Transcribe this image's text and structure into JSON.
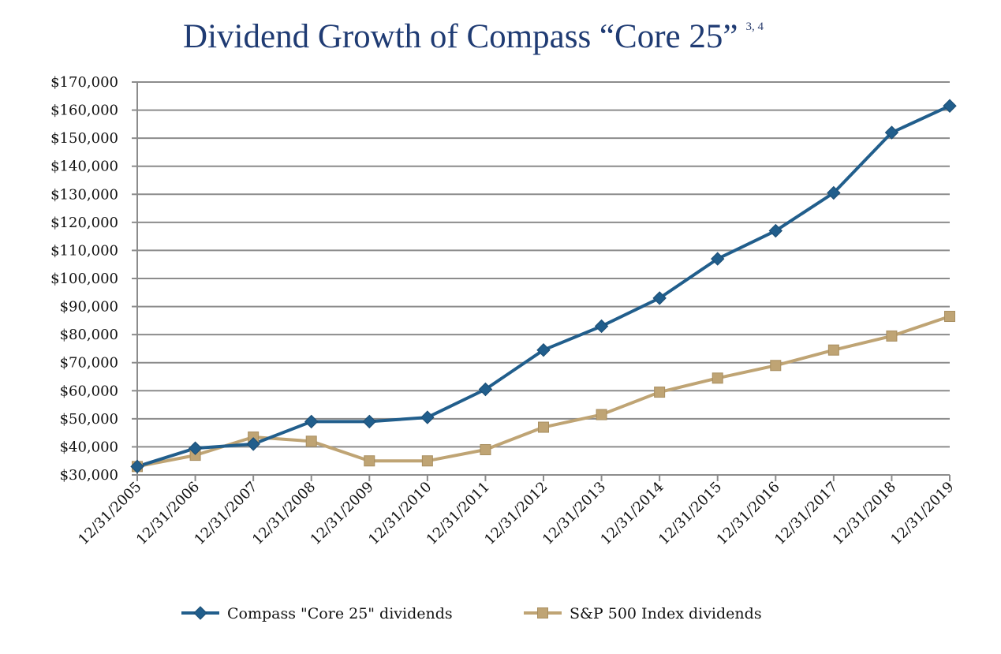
{
  "chart_data": {
    "type": "line",
    "title": "Dividend Growth of Compass “Core 25”",
    "title_superscript": "3, 4",
    "xlabel": "",
    "ylabel": "",
    "categories": [
      "12/31/2005",
      "12/31/2006",
      "12/31/2007",
      "12/31/2008",
      "12/31/2009",
      "12/31/2010",
      "12/31/2011",
      "12/31/2012",
      "12/31/2013",
      "12/31/2014",
      "12/31/2015",
      "12/31/2016",
      "12/31/2017",
      "12/31/2018",
      "12/31/2019"
    ],
    "ylim": [
      30000,
      170000
    ],
    "y_ticks": [
      30000,
      40000,
      50000,
      60000,
      70000,
      80000,
      90000,
      100000,
      110000,
      120000,
      130000,
      140000,
      150000,
      160000,
      170000
    ],
    "y_tick_labels": [
      "$30,000",
      "$40,000",
      "$50,000",
      "$60,000",
      "$70,000",
      "$80,000",
      "$90,000",
      "$100,000",
      "$110,000",
      "$120,000",
      "$130,000",
      "$140,000",
      "$150,000",
      "$160,000",
      "$170,000"
    ],
    "grid": true,
    "legend_position": "bottom",
    "series": [
      {
        "name": "Compass \"Core 25\" dividends",
        "color": "#215e8c",
        "marker": "diamond",
        "values": [
          33000,
          39500,
          41000,
          49000,
          49000,
          50500,
          60500,
          74500,
          83000,
          93000,
          107000,
          117000,
          130500,
          152000,
          161500
        ]
      },
      {
        "name": "S&P 500 Index dividends",
        "color": "#bfa474",
        "marker": "square",
        "values": [
          33000,
          37000,
          43500,
          42000,
          35000,
          35000,
          39000,
          47000,
          51500,
          59500,
          64500,
          69000,
          74500,
          79500,
          86500
        ]
      }
    ]
  }
}
